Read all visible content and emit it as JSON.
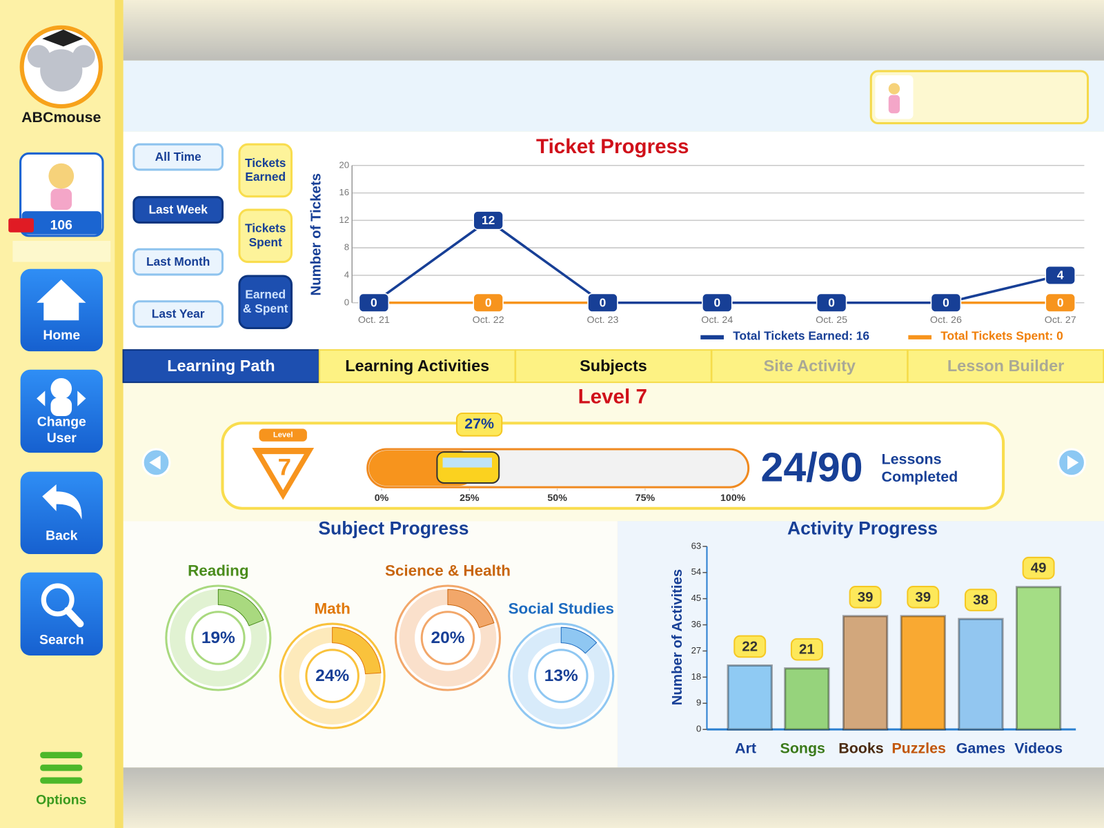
{
  "sidebar": {
    "logo": "ABCmouse",
    "tickets": "106",
    "nav": [
      "Home",
      "Change User",
      "Back",
      "Search"
    ],
    "options": "Options"
  },
  "filters": {
    "periods": [
      "All Time",
      "Last Week",
      "Last Month",
      "Last Year"
    ],
    "modes": [
      "Tickets Earned",
      "Tickets Spent",
      "Earned & Spent"
    ]
  },
  "tabs": [
    "Learning Path",
    "Learning Activities",
    "Subjects",
    "Site Activity",
    "Lesson Builder"
  ],
  "level": {
    "title": "Level 7",
    "badge_label": "Level",
    "badge_number": "7",
    "progress": {
      "value": 27,
      "label": "27%"
    },
    "ticks": [
      {
        "value": 0,
        "label": "0%"
      },
      {
        "value": 25,
        "label": "25%"
      },
      {
        "value": 50,
        "label": "50%"
      },
      {
        "value": 75,
        "label": "75%"
      },
      {
        "value": 100,
        "label": "100%"
      }
    ],
    "completed": "24/90",
    "completed_label": "Lessons Completed"
  },
  "chart_data": [
    {
      "type": "line",
      "title": "Ticket Progress",
      "y_label": "Number of Tickets",
      "categories": [
        "Oct. 21",
        "Oct. 22",
        "Oct. 23",
        "Oct. 24",
        "Oct. 25",
        "Oct. 26",
        "Oct. 27"
      ],
      "series": [
        {
          "name": "Total Tickets Earned: 16",
          "color": "#173f96",
          "values": [
            0,
            12,
            0,
            0,
            0,
            0,
            4
          ]
        },
        {
          "name": "Total Tickets Spent: 0",
          "color": "#f7941d",
          "values": [
            0,
            0,
            0,
            0,
            0,
            0,
            0
          ]
        }
      ],
      "ylim": [
        0,
        20
      ],
      "yticks": [
        0,
        4,
        8,
        12,
        16,
        20
      ],
      "grid": true
    },
    {
      "type": "donut",
      "title": "Subject Progress",
      "categories": [
        "Reading",
        "Math",
        "Science & Health",
        "Social Studies"
      ],
      "values": [
        19,
        24,
        20,
        13
      ],
      "value_labels": [
        "19%",
        "24%",
        "20%",
        "13%"
      ],
      "colors": [
        "#a9d97f",
        "#f9c23c",
        "#f2a76a",
        "#8fc7f2"
      ],
      "label_colors": [
        "#4a8c1c",
        "#e0780a",
        "#c8650e",
        "#1d6bc0"
      ]
    },
    {
      "type": "bar",
      "title": "Activity Progress",
      "y_label": "Number of Activities",
      "categories": [
        "Art",
        "Songs",
        "Books",
        "Puzzles",
        "Games",
        "Videos"
      ],
      "values": [
        22,
        21,
        39,
        39,
        38,
        49
      ],
      "colors": [
        "#8fcaf3",
        "#96d37c",
        "#d2a77c",
        "#f9a932",
        "#92c6f0",
        "#a4dd85"
      ],
      "label_colors": [
        "#173f96",
        "#3b7a1a",
        "#4a2a10",
        "#c2560a",
        "#173f96",
        "#173f96"
      ],
      "ylim": [
        0,
        63
      ],
      "yticks": [
        0,
        9,
        18,
        27,
        36,
        45,
        54,
        63
      ]
    }
  ]
}
